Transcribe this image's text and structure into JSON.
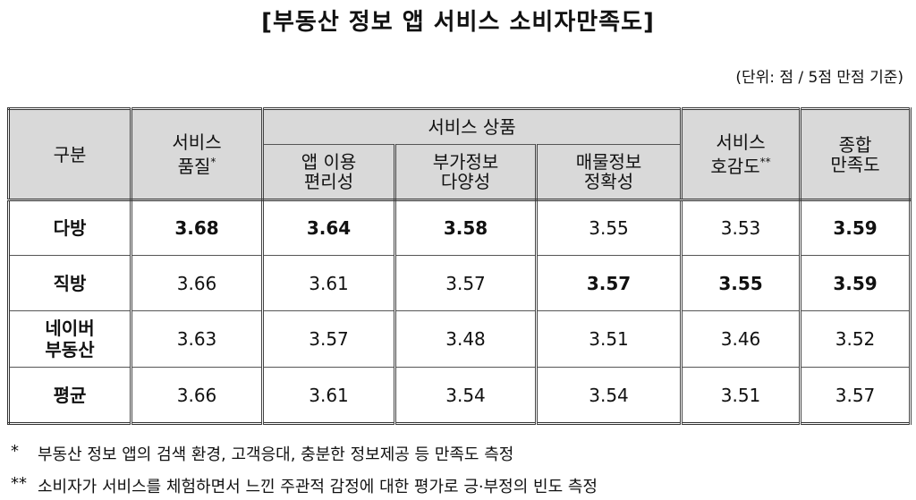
{
  "title": "[부동산 정보 앱 서비스 소비자만족도]",
  "unit": "(단위: 점 / 5점 만점 기준)",
  "table": {
    "header": {
      "category": "구분",
      "quality": {
        "text": "서비스\n품질",
        "mark": "*"
      },
      "group": "서비스 상품",
      "products": [
        "앱 이용\n편리성",
        "부가정보\n다양성",
        "매물정보\n정확성"
      ],
      "favor": {
        "text": "서비스\n호감도",
        "mark": "**"
      },
      "overall": "종합\n만족도"
    },
    "rows": [
      {
        "label": "다방",
        "values": [
          3.68,
          3.64,
          3.58,
          3.55,
          3.53,
          3.59
        ],
        "bold": [
          true,
          true,
          true,
          false,
          false,
          true
        ]
      },
      {
        "label": "직방",
        "values": [
          3.66,
          3.61,
          3.57,
          3.57,
          3.55,
          3.59
        ],
        "bold": [
          false,
          false,
          false,
          true,
          true,
          true
        ]
      },
      {
        "label": "네이버\n부동산",
        "values": [
          3.63,
          3.57,
          3.48,
          3.51,
          3.46,
          3.52
        ],
        "bold": [
          false,
          false,
          false,
          false,
          false,
          false
        ]
      },
      {
        "label": "평균",
        "values": [
          3.66,
          3.61,
          3.54,
          3.54,
          3.51,
          3.57
        ],
        "bold": [
          false,
          false,
          false,
          false,
          false,
          false
        ]
      }
    ]
  },
  "footnotes": [
    {
      "mark": "*",
      "text": "부동산 정보 앱의 검색 환경, 고객응대, 충분한 정보제공 등 만족도 측정"
    },
    {
      "mark": "**",
      "text": "소비자가 서비스를 체험하면서 느낀 주관적 감정에 대한 평가로 긍·부정의 빈도 측정"
    }
  ]
}
